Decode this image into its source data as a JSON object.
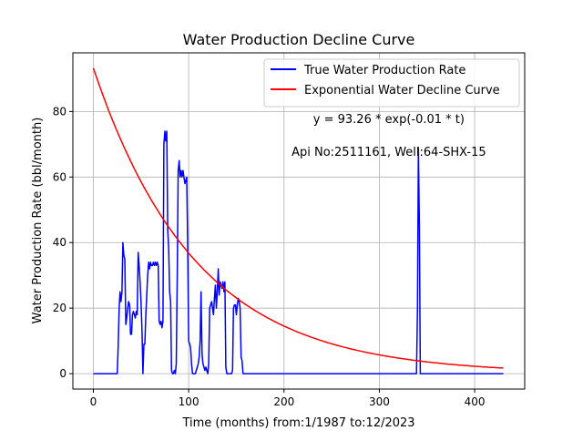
{
  "chart_data": {
    "type": "line",
    "title": "Water Production Decline Curve",
    "xlabel": "Time (months) from:1/1987 to:12/2023",
    "ylabel": "Water Production Rate (bbl/month)",
    "xlim": [
      -21.5,
      452.5
    ],
    "ylim": [
      -4.7,
      97.9
    ],
    "xticks": [
      0,
      100,
      200,
      300,
      400
    ],
    "yticks": [
      0,
      20,
      40,
      60,
      80
    ],
    "grid": true,
    "legend_position": "top-right",
    "annotations": [
      {
        "text": "y = 93.26 * exp(-0.01 * t)",
        "x": 310,
        "y": 76.5
      },
      {
        "text": "Api No:2511161, Well:64-SHX-15",
        "x": 310,
        "y": 66.5
      }
    ],
    "series": [
      {
        "name": "True Water Production Rate",
        "color": "#0000ff",
        "points": [
          [
            0,
            0
          ],
          [
            25,
            0
          ],
          [
            26,
            8
          ],
          [
            27,
            20
          ],
          [
            28,
            25
          ],
          [
            29,
            22
          ],
          [
            30,
            25
          ],
          [
            31,
            40
          ],
          [
            32,
            36
          ],
          [
            33,
            35
          ],
          [
            34,
            15
          ],
          [
            35,
            17
          ],
          [
            36,
            20
          ],
          [
            37,
            22
          ],
          [
            38,
            21
          ],
          [
            39,
            12
          ],
          [
            40,
            12
          ],
          [
            41,
            18
          ],
          [
            42,
            19
          ],
          [
            43,
            18
          ],
          [
            44,
            17
          ],
          [
            45,
            19
          ],
          [
            46,
            18
          ],
          [
            47,
            37
          ],
          [
            48,
            33
          ],
          [
            49,
            28
          ],
          [
            50,
            22
          ],
          [
            51,
            13
          ],
          [
            52,
            0
          ],
          [
            53,
            9
          ],
          [
            54,
            9
          ],
          [
            55,
            18
          ],
          [
            56,
            24
          ],
          [
            57,
            30
          ],
          [
            58,
            34
          ],
          [
            59,
            32
          ],
          [
            60,
            34
          ],
          [
            61,
            33
          ],
          [
            62,
            33
          ],
          [
            63,
            34
          ],
          [
            64,
            33
          ],
          [
            65,
            34
          ],
          [
            66,
            33
          ],
          [
            67,
            34
          ],
          [
            68,
            33
          ],
          [
            69,
            16
          ],
          [
            70,
            15
          ],
          [
            71,
            16
          ],
          [
            72,
            14
          ],
          [
            73,
            16
          ],
          [
            74,
            70
          ],
          [
            75,
            74
          ],
          [
            76,
            71
          ],
          [
            77,
            74
          ],
          [
            78,
            44
          ],
          [
            79,
            38
          ],
          [
            80,
            25
          ],
          [
            81,
            22
          ],
          [
            82,
            1
          ],
          [
            83,
            0
          ],
          [
            84,
            0
          ],
          [
            85,
            1
          ],
          [
            86,
            0
          ],
          [
            87,
            3
          ],
          [
            88,
            30
          ],
          [
            89,
            62
          ],
          [
            90,
            65
          ],
          [
            91,
            60
          ],
          [
            92,
            62
          ],
          [
            93,
            60
          ],
          [
            94,
            62
          ],
          [
            95,
            60
          ],
          [
            96,
            58
          ],
          [
            97,
            59
          ],
          [
            98,
            60
          ],
          [
            99,
            38
          ],
          [
            100,
            10
          ],
          [
            101,
            9
          ],
          [
            102,
            8
          ],
          [
            103,
            3
          ],
          [
            104,
            0
          ],
          [
            105,
            0
          ],
          [
            106,
            0
          ],
          [
            107,
            0
          ],
          [
            108,
            1
          ],
          [
            109,
            2
          ],
          [
            110,
            3
          ],
          [
            111,
            5
          ],
          [
            112,
            10
          ],
          [
            113,
            25
          ],
          [
            114,
            6
          ],
          [
            115,
            3
          ],
          [
            116,
            2
          ],
          [
            117,
            1
          ],
          [
            118,
            2
          ],
          [
            119,
            1
          ],
          [
            120,
            0
          ],
          [
            121,
            3
          ],
          [
            122,
            20
          ],
          [
            123,
            21
          ],
          [
            124,
            22
          ],
          [
            125,
            20
          ],
          [
            126,
            18
          ],
          [
            127,
            23
          ],
          [
            128,
            27
          ],
          [
            129,
            20
          ],
          [
            130,
            25
          ],
          [
            131,
            32
          ],
          [
            132,
            24
          ],
          [
            133,
            28
          ],
          [
            134,
            27
          ],
          [
            135,
            26
          ],
          [
            136,
            28
          ],
          [
            137,
            25
          ],
          [
            138,
            28
          ],
          [
            139,
            2
          ],
          [
            140,
            0
          ],
          [
            141,
            0
          ],
          [
            142,
            0
          ],
          [
            143,
            0
          ],
          [
            144,
            0
          ],
          [
            145,
            0
          ],
          [
            146,
            1
          ],
          [
            147,
            20
          ],
          [
            148,
            21
          ],
          [
            149,
            21
          ],
          [
            150,
            18
          ],
          [
            151,
            21
          ],
          [
            152,
            23
          ],
          [
            153,
            22
          ],
          [
            154,
            20
          ],
          [
            155,
            5
          ],
          [
            156,
            4
          ],
          [
            157,
            0
          ],
          [
            339,
            0
          ],
          [
            340,
            20
          ],
          [
            341,
            69
          ],
          [
            342,
            45
          ],
          [
            343,
            0
          ],
          [
            430,
            0
          ]
        ]
      },
      {
        "name": "Exponential Water Decline Curve",
        "color": "#ff0000",
        "a": 93.26,
        "b": 0.0093,
        "t_max": 430
      }
    ]
  }
}
